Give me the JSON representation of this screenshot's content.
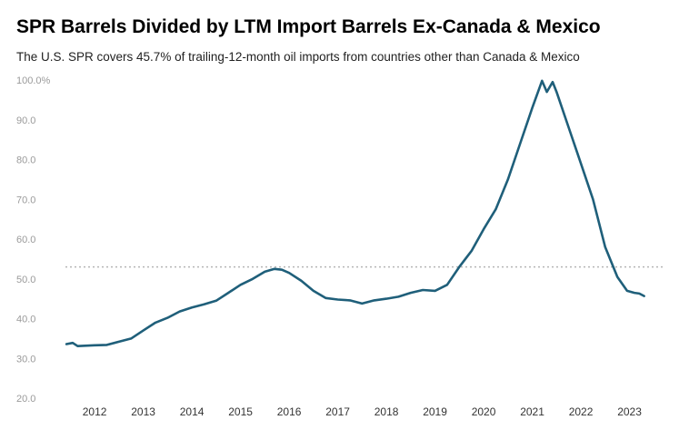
{
  "chart_data": {
    "type": "line",
    "title": "SPR Barrels Divided by LTM Import Barrels Ex-Canada & Mexico",
    "subtitle": "The U.S. SPR covers 45.7% of trailing-12-month oil imports from countries other than Canada & Mexico",
    "xlabel": "",
    "ylabel": "",
    "ylim": [
      20,
      100
    ],
    "xlim": [
      2011.4,
      2023.7
    ],
    "y_ticks": [
      {
        "value": 100,
        "label": "100.0%"
      },
      {
        "value": 90,
        "label": "90.0"
      },
      {
        "value": 80,
        "label": "80.0"
      },
      {
        "value": 70,
        "label": "70.0"
      },
      {
        "value": 60,
        "label": "60.0"
      },
      {
        "value": 50,
        "label": "50.0"
      },
      {
        "value": 40,
        "label": "40.0"
      },
      {
        "value": 30,
        "label": "30.0"
      },
      {
        "value": 20,
        "label": "20.0"
      }
    ],
    "x_ticks": [
      {
        "value": 2012,
        "label": "2012"
      },
      {
        "value": 2013,
        "label": "2013"
      },
      {
        "value": 2014,
        "label": "2014"
      },
      {
        "value": 2015,
        "label": "2015"
      },
      {
        "value": 2016,
        "label": "2016"
      },
      {
        "value": 2017,
        "label": "2017"
      },
      {
        "value": 2018,
        "label": "2018"
      },
      {
        "value": 2019,
        "label": "2019"
      },
      {
        "value": 2020,
        "label": "2020"
      },
      {
        "value": 2021,
        "label": "2021"
      },
      {
        "value": 2022,
        "label": "2022"
      },
      {
        "value": 2023,
        "label": "2023"
      }
    ],
    "reference_line": {
      "value": 53,
      "style": "dotted"
    },
    "grid": false,
    "legend": "none",
    "line_color": "#1f5f7a",
    "reference_color": "#b5b5b5",
    "series": [
      {
        "points": [
          [
            2011.42,
            33.6
          ],
          [
            2011.55,
            33.9
          ],
          [
            2011.65,
            33.1
          ],
          [
            2011.8,
            33.2
          ],
          [
            2012.0,
            33.3
          ],
          [
            2012.25,
            33.4
          ],
          [
            2012.5,
            34.2
          ],
          [
            2012.75,
            35.0
          ],
          [
            2013.0,
            37.0
          ],
          [
            2013.25,
            39.0
          ],
          [
            2013.5,
            40.2
          ],
          [
            2013.75,
            41.8
          ],
          [
            2014.0,
            42.8
          ],
          [
            2014.25,
            43.6
          ],
          [
            2014.5,
            44.5
          ],
          [
            2014.75,
            46.5
          ],
          [
            2015.0,
            48.5
          ],
          [
            2015.25,
            50.0
          ],
          [
            2015.5,
            51.8
          ],
          [
            2015.7,
            52.5
          ],
          [
            2015.85,
            52.3
          ],
          [
            2016.0,
            51.5
          ],
          [
            2016.25,
            49.5
          ],
          [
            2016.5,
            47.0
          ],
          [
            2016.75,
            45.2
          ],
          [
            2017.0,
            44.8
          ],
          [
            2017.25,
            44.6
          ],
          [
            2017.5,
            43.8
          ],
          [
            2017.75,
            44.6
          ],
          [
            2018.0,
            45.0
          ],
          [
            2018.25,
            45.5
          ],
          [
            2018.5,
            46.5
          ],
          [
            2018.75,
            47.2
          ],
          [
            2019.0,
            47.0
          ],
          [
            2019.25,
            48.5
          ],
          [
            2019.5,
            53.0
          ],
          [
            2019.75,
            57.0
          ],
          [
            2020.0,
            62.5
          ],
          [
            2020.25,
            67.5
          ],
          [
            2020.5,
            75.0
          ],
          [
            2020.75,
            84.0
          ],
          [
            2021.0,
            93.0
          ],
          [
            2021.2,
            99.8
          ],
          [
            2021.3,
            97.0
          ],
          [
            2021.42,
            99.5
          ],
          [
            2021.5,
            97.0
          ],
          [
            2021.75,
            88.0
          ],
          [
            2022.0,
            79.0
          ],
          [
            2022.25,
            70.0
          ],
          [
            2022.5,
            58.0
          ],
          [
            2022.75,
            50.5
          ],
          [
            2022.95,
            47.0
          ],
          [
            2023.1,
            46.5
          ],
          [
            2023.2,
            46.3
          ],
          [
            2023.3,
            45.7
          ]
        ]
      }
    ]
  }
}
